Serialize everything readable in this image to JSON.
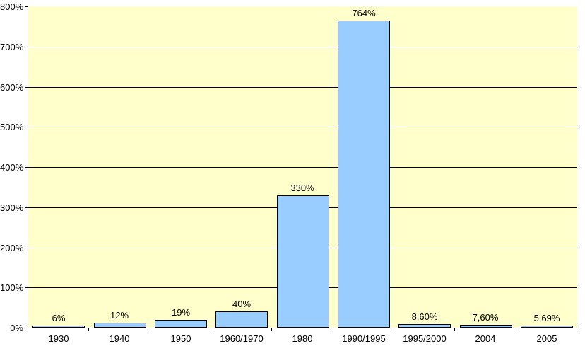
{
  "chart_data": {
    "type": "bar",
    "title": "",
    "xlabel": "",
    "ylabel": "",
    "categories": [
      "1930",
      "1940",
      "1950",
      "1960/1970",
      "1980",
      "1990/1995",
      "1995/2000",
      "2004",
      "2005"
    ],
    "values": [
      6,
      12,
      19,
      40,
      330,
      764,
      8.6,
      7.6,
      5.69
    ],
    "value_labels": [
      "6%",
      "12%",
      "19%",
      "40%",
      "330%",
      "764%",
      "8,60%",
      "7,60%",
      "5,69%"
    ],
    "y_tick_labels": [
      "0%",
      "100%",
      "200%",
      "300%",
      "400%",
      "500%",
      "600%",
      "700%",
      "800%"
    ],
    "ylim": [
      0,
      800
    ],
    "y_step": 100,
    "grid": "horizontal",
    "legend": "none",
    "colors": {
      "page_bg": "#FFFFFF",
      "plot_bg": "#FFFFCC",
      "bar_fill": "#99CCFF",
      "bar_border": "#000000",
      "gridline": "#000000",
      "axis": "#000000",
      "text": "#000000"
    }
  }
}
